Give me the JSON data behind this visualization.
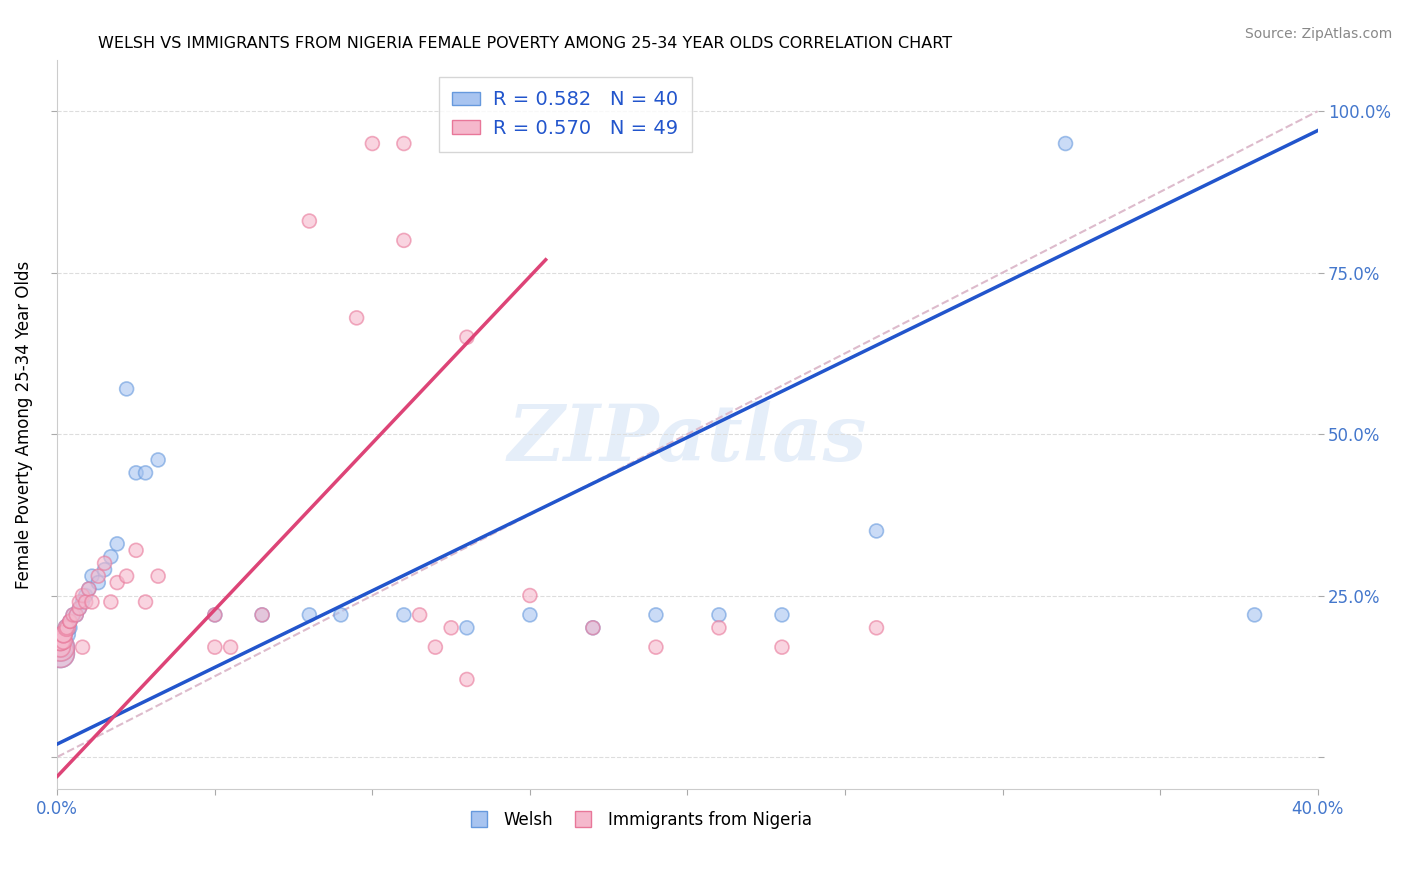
{
  "title": "WELSH VS IMMIGRANTS FROM NIGERIA FEMALE POVERTY AMONG 25-34 YEAR OLDS CORRELATION CHART",
  "source": "Source: ZipAtlas.com",
  "ylabel": "Female Poverty Among 25-34 Year Olds",
  "xlim": [
    0.0,
    0.4
  ],
  "ylim": [
    -0.05,
    1.08
  ],
  "welsh_R": 0.582,
  "welsh_N": 40,
  "nigeria_R": 0.57,
  "nigeria_N": 49,
  "welsh_color": "#a8c4f0",
  "nigeria_color": "#f5b8cc",
  "welsh_edge_color": "#6699dd",
  "nigeria_edge_color": "#e87799",
  "welsh_line_color": "#2255cc",
  "nigeria_line_color": "#dd4477",
  "ref_line_color": "#dddddd",
  "watermark": "ZIPatlas",
  "welsh_line_x0": 0.0,
  "welsh_line_y0": 0.02,
  "welsh_line_x1": 0.4,
  "welsh_line_y1": 0.97,
  "nigeria_line_x0": 0.0,
  "nigeria_line_y0": -0.03,
  "nigeria_line_x1": 0.155,
  "nigeria_line_y1": 0.77,
  "welsh_x": [
    0.001,
    0.001,
    0.001,
    0.001,
    0.002,
    0.002,
    0.002,
    0.003,
    0.003,
    0.004,
    0.004,
    0.005,
    0.006,
    0.007,
    0.008,
    0.009,
    0.01,
    0.011,
    0.013,
    0.015,
    0.017,
    0.019,
    0.022,
    0.025,
    0.028,
    0.032,
    0.05,
    0.065,
    0.08,
    0.09,
    0.11,
    0.13,
    0.15,
    0.17,
    0.19,
    0.21,
    0.23,
    0.26,
    0.32,
    0.38
  ],
  "welsh_y": [
    0.16,
    0.17,
    0.17,
    0.18,
    0.17,
    0.18,
    0.19,
    0.19,
    0.2,
    0.2,
    0.21,
    0.22,
    0.22,
    0.23,
    0.24,
    0.25,
    0.26,
    0.28,
    0.27,
    0.29,
    0.31,
    0.33,
    0.57,
    0.44,
    0.44,
    0.46,
    0.22,
    0.22,
    0.22,
    0.22,
    0.22,
    0.2,
    0.22,
    0.2,
    0.22,
    0.22,
    0.22,
    0.35,
    0.95,
    0.22
  ],
  "welsh_sizes": [
    400,
    400,
    200,
    200,
    200,
    150,
    150,
    150,
    150,
    100,
    100,
    100,
    100,
    100,
    100,
    100,
    100,
    100,
    100,
    100,
    100,
    100,
    100,
    100,
    100,
    100,
    100,
    100,
    100,
    100,
    100,
    100,
    100,
    100,
    100,
    100,
    100,
    100,
    100,
    100
  ],
  "nigeria_x": [
    0.001,
    0.001,
    0.001,
    0.001,
    0.001,
    0.002,
    0.002,
    0.002,
    0.003,
    0.003,
    0.004,
    0.004,
    0.005,
    0.006,
    0.007,
    0.007,
    0.008,
    0.009,
    0.01,
    0.011,
    0.013,
    0.015,
    0.017,
    0.019,
    0.022,
    0.025,
    0.028,
    0.032,
    0.05,
    0.065,
    0.08,
    0.095,
    0.11,
    0.13,
    0.15,
    0.17,
    0.19,
    0.21,
    0.23,
    0.26,
    0.1,
    0.11,
    0.115,
    0.12,
    0.125,
    0.13,
    0.008,
    0.05,
    0.055
  ],
  "nigeria_y": [
    0.16,
    0.17,
    0.17,
    0.18,
    0.18,
    0.18,
    0.19,
    0.19,
    0.2,
    0.2,
    0.21,
    0.21,
    0.22,
    0.22,
    0.23,
    0.24,
    0.25,
    0.24,
    0.26,
    0.24,
    0.28,
    0.3,
    0.24,
    0.27,
    0.28,
    0.32,
    0.24,
    0.28,
    0.22,
    0.22,
    0.83,
    0.68,
    0.8,
    0.65,
    0.25,
    0.2,
    0.17,
    0.2,
    0.17,
    0.2,
    0.95,
    0.95,
    0.22,
    0.17,
    0.2,
    0.12,
    0.17,
    0.17,
    0.17
  ],
  "nigeria_sizes": [
    400,
    400,
    200,
    200,
    200,
    150,
    150,
    150,
    150,
    100,
    100,
    100,
    100,
    100,
    100,
    100,
    100,
    100,
    100,
    100,
    100,
    100,
    100,
    100,
    100,
    100,
    100,
    100,
    100,
    100,
    100,
    100,
    100,
    100,
    100,
    100,
    100,
    100,
    100,
    100,
    100,
    100,
    100,
    100,
    100,
    100,
    100,
    100,
    100
  ]
}
